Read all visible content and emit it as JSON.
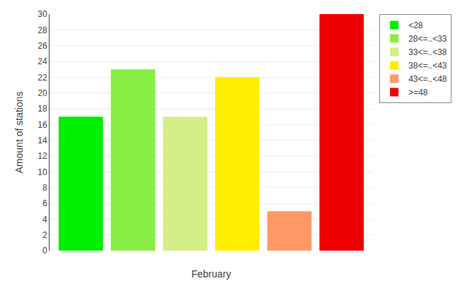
{
  "chart_data": {
    "type": "bar",
    "categories": [
      "<28",
      "28<=..<33",
      "33<=..<38",
      "38<=..<43",
      "43<=..<48",
      ">=48"
    ],
    "values": [
      17,
      23,
      17,
      22,
      5,
      30
    ],
    "colors": [
      "#00ee00",
      "#88ee44",
      "#d4ee88",
      "#ffee00",
      "#ff9966",
      "#ee0000"
    ],
    "xlabel": "February",
    "ylabel": "Amount of stations",
    "ylim": [
      0,
      30
    ],
    "yticks": [
      0,
      2,
      4,
      6,
      8,
      10,
      12,
      14,
      16,
      18,
      20,
      22,
      24,
      26,
      28,
      30
    ],
    "grid": true,
    "legend": "upper right",
    "tick_labels": "y"
  }
}
